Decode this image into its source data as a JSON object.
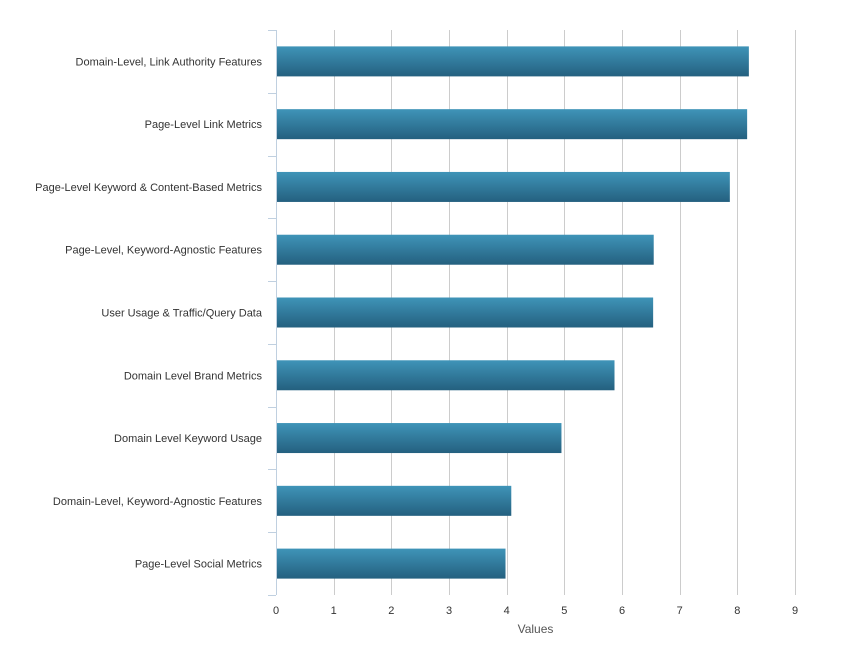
{
  "chart_data": {
    "type": "bar",
    "orientation": "horizontal",
    "categories": [
      "Domain-Level, Link Authority Features",
      "Page-Level Link Metrics",
      "Page-Level Keyword & Content-Based Metrics",
      "Page-Level, Keyword-Agnostic Features",
      "User Usage & Traffic/Query Data",
      "Domain Level Brand Metrics",
      "Domain Level Keyword Usage",
      "Domain-Level, Keyword-Agnostic Features",
      "Page-Level Social Metrics"
    ],
    "values": [
      8.2,
      8.17,
      7.87,
      6.55,
      6.54,
      5.87,
      4.95,
      4.08,
      3.98
    ],
    "title": "",
    "xlabel": "Values",
    "ylabel": "",
    "xlim": [
      0,
      9
    ],
    "x_ticks": [
      "0",
      "1",
      "2",
      "3",
      "4",
      "5",
      "6",
      "7",
      "8",
      "9"
    ],
    "grid": true,
    "legend": "none",
    "colors": {
      "bar_top": "#3f94b8",
      "bar_bottom": "#24607f",
      "gridline": "#cccccc",
      "axis": "#c0d0e0"
    }
  }
}
